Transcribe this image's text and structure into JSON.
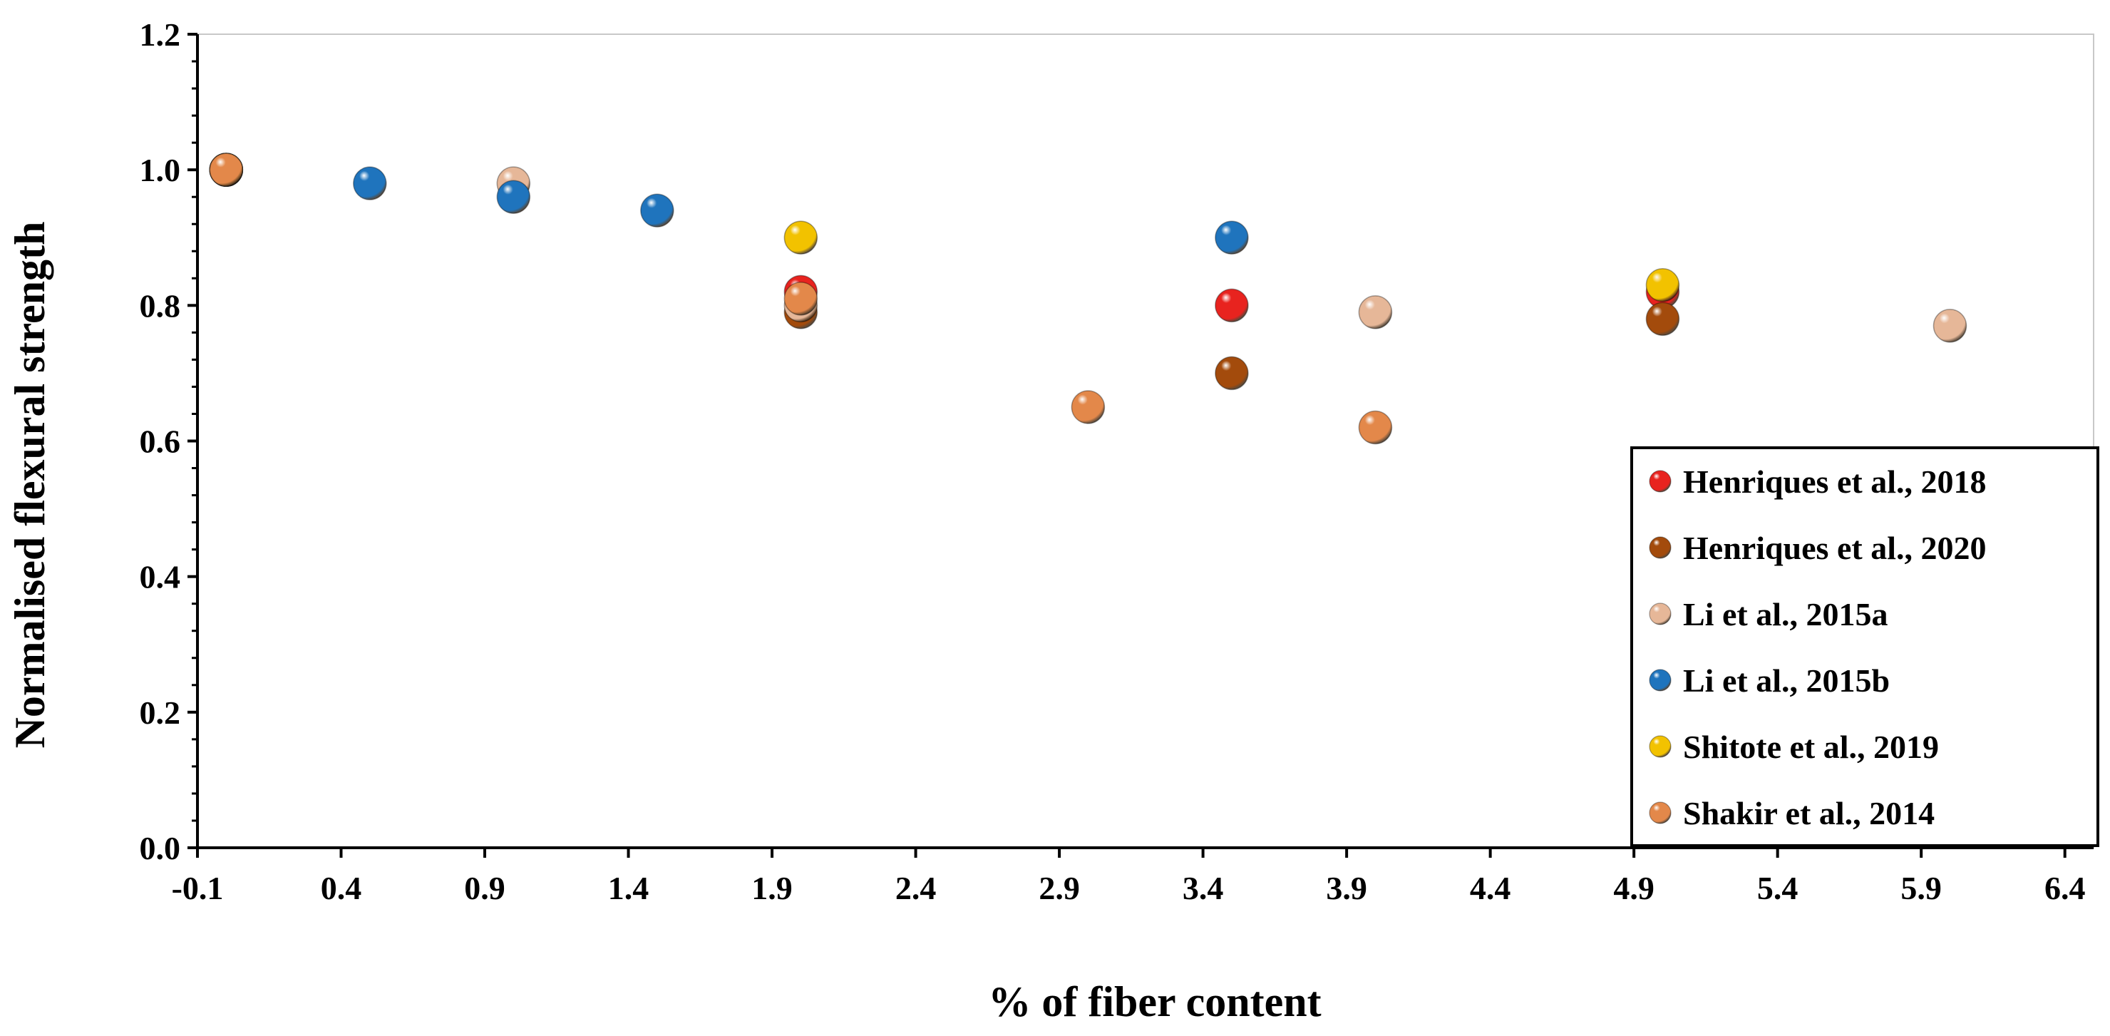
{
  "chart_data": {
    "type": "scatter",
    "title": "",
    "xlabel": "% of fiber content",
    "ylabel": "Normalised flexural strength",
    "xlim": [
      -0.1,
      6.5
    ],
    "ylim": [
      0.0,
      1.2
    ],
    "xticks": [
      "-0.1",
      "0.4",
      "0.9",
      "1.4",
      "1.9",
      "2.4",
      "2.9",
      "3.4",
      "3.9",
      "4.4",
      "4.9",
      "5.4",
      "5.9",
      "6.4"
    ],
    "yticks": [
      "0.0",
      "0.2",
      "0.4",
      "0.6",
      "0.8",
      "1.0",
      "1.2"
    ],
    "grid": false,
    "legend_position": "bottom-right",
    "series": [
      {
        "name": "Henriques et al., 2018",
        "color": "#e8231f",
        "points": [
          [
            0,
            1.0
          ],
          [
            2,
            0.82
          ],
          [
            3.5,
            0.8
          ],
          [
            5,
            0.82
          ]
        ]
      },
      {
        "name": "Henriques et al., 2020",
        "color": "#a34b0c",
        "points": [
          [
            0,
            1.0
          ],
          [
            2,
            0.79
          ],
          [
            3.5,
            0.7
          ],
          [
            5,
            0.78
          ]
        ]
      },
      {
        "name": "Li et al., 2015a",
        "color": "#e6b798",
        "points": [
          [
            0,
            1.0
          ],
          [
            1,
            0.98
          ],
          [
            2,
            0.8
          ],
          [
            4,
            0.79
          ],
          [
            6,
            0.77
          ]
        ]
      },
      {
        "name": "Li et al., 2015b",
        "color": "#1f74bd",
        "points": [
          [
            0,
            1.0
          ],
          [
            0.5,
            0.98
          ],
          [
            1,
            0.96
          ],
          [
            1.5,
            0.94
          ],
          [
            3.5,
            0.9
          ]
        ]
      },
      {
        "name": "Shitote et al., 2019",
        "color": "#f2c200",
        "points": [
          [
            0,
            1.0
          ],
          [
            2,
            0.9
          ],
          [
            5,
            0.83
          ]
        ]
      },
      {
        "name": "Shakir et al., 2014",
        "color": "#e3884a",
        "points": [
          [
            0,
            1.0
          ],
          [
            2,
            0.81
          ],
          [
            3,
            0.65
          ],
          [
            4,
            0.62
          ]
        ]
      }
    ]
  }
}
